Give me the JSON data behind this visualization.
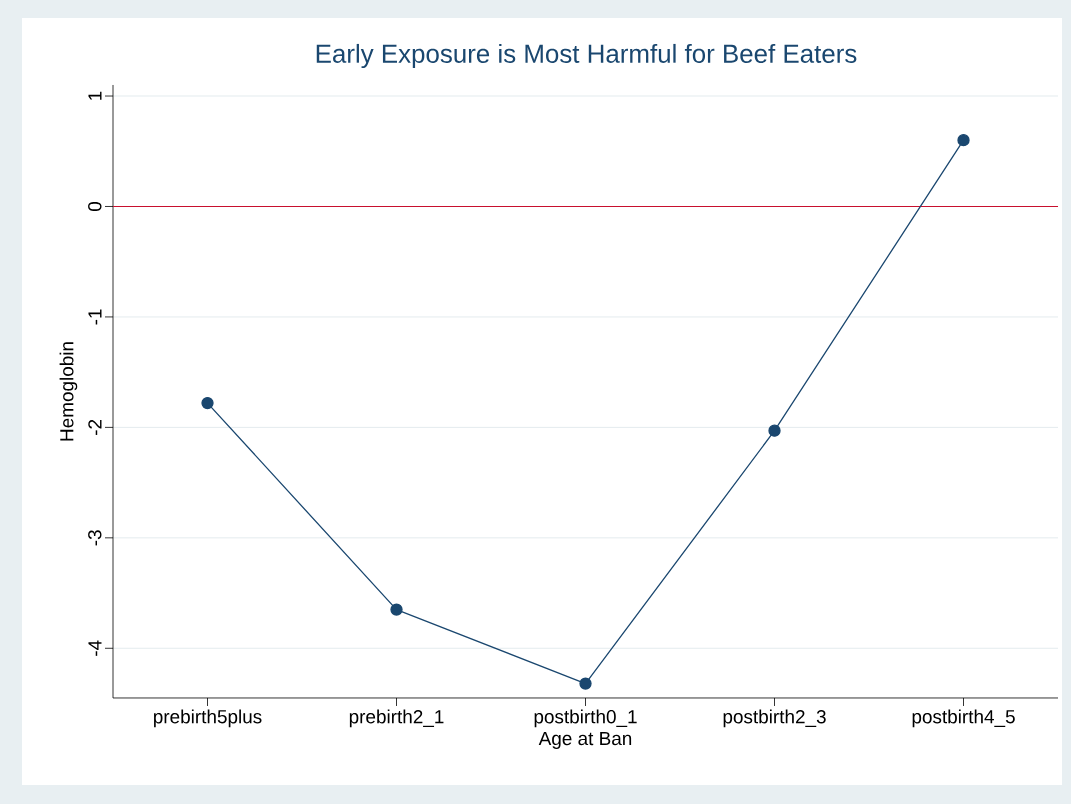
{
  "chart_data": {
    "type": "line",
    "title": "Early Exposure is Most Harmful for Beef Eaters",
    "xlabel": "Age at Ban",
    "ylabel": "Hemoglobin",
    "categories": [
      "prebirth5plus",
      "prebirth2_1",
      "postbirth0_1",
      "postbirth2_3",
      "postbirth4_5"
    ],
    "series": [
      {
        "color": "#1a476f",
        "values": [
          -1.78,
          -3.65,
          -4.32,
          -2.03,
          0.6
        ]
      }
    ],
    "ylim": [
      -4.45,
      1.1
    ],
    "yticks": [
      -4,
      -3,
      -2,
      -1,
      0,
      1
    ],
    "grid": "y",
    "marker": "circle",
    "line_style": "solid",
    "ref_lines": [
      {
        "axis": "y",
        "value": 0,
        "color": "#c8102e"
      }
    ]
  }
}
